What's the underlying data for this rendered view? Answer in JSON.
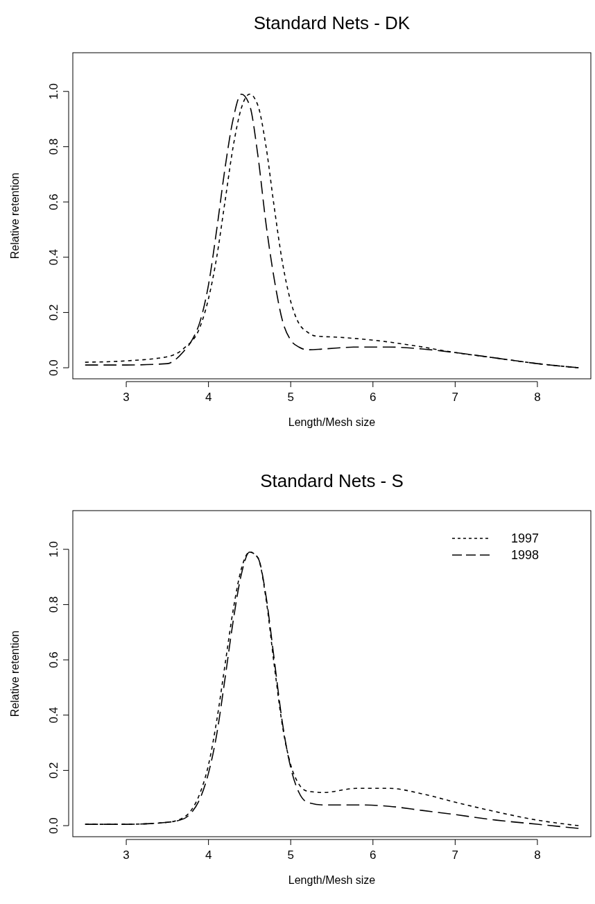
{
  "chart_data": [
    {
      "type": "line",
      "title": "Standard Nets - DK",
      "xlabel": "Length/Mesh size",
      "ylabel": "Relative retention",
      "xlim": [
        2.35,
        8.65
      ],
      "ylim": [
        -0.04,
        1.14
      ],
      "xticks": [
        3,
        4,
        5,
        6,
        7,
        8
      ],
      "yticks": [
        {
          "value": 0,
          "label": "0.0"
        },
        {
          "value": 0.2,
          "label": "0.2"
        },
        {
          "value": 0.4,
          "label": "0.4"
        },
        {
          "value": 0.6,
          "label": "0.6"
        },
        {
          "value": 0.8,
          "label": "0.8"
        },
        {
          "value": 1,
          "label": "1.0"
        }
      ],
      "grid": false,
      "legend": false,
      "series": [
        {
          "color": "#000000",
          "line_style": "dotted",
          "x": [
            2.5,
            3,
            3.5,
            3.7,
            3.9,
            4.0,
            4.1,
            4.2,
            4.3,
            4.4,
            4.5,
            4.6,
            4.7,
            4.8,
            4.9,
            5.0,
            5.1,
            5.2,
            5.3,
            5.6,
            6.0,
            6.5,
            7.0,
            7.5,
            8.0,
            8.5
          ],
          "values": [
            0.02,
            0.025,
            0.04,
            0.07,
            0.15,
            0.25,
            0.4,
            0.6,
            0.8,
            0.94,
            0.99,
            0.95,
            0.8,
            0.58,
            0.38,
            0.24,
            0.16,
            0.13,
            0.115,
            0.11,
            0.1,
            0.08,
            0.055,
            0.035,
            0.015,
            0.0
          ]
        },
        {
          "color": "#000000",
          "line_style": "dashed",
          "x": [
            2.5,
            3,
            3.5,
            3.6,
            3.7,
            3.8,
            3.9,
            4.0,
            4.1,
            4.2,
            4.3,
            4.4,
            4.5,
            4.6,
            4.7,
            4.8,
            4.9,
            5.0,
            5.1,
            5.2,
            5.4,
            5.8,
            6.2,
            6.6,
            7.0,
            7.5,
            8.0,
            8.5
          ],
          "values": [
            0.01,
            0.01,
            0.015,
            0.03,
            0.06,
            0.1,
            0.17,
            0.3,
            0.5,
            0.72,
            0.9,
            0.99,
            0.95,
            0.77,
            0.52,
            0.32,
            0.17,
            0.1,
            0.075,
            0.065,
            0.068,
            0.075,
            0.075,
            0.068,
            0.055,
            0.035,
            0.015,
            0.0
          ]
        }
      ]
    },
    {
      "type": "line",
      "title": "Standard Nets - S",
      "xlabel": "Length/Mesh size",
      "ylabel": "Relative retention",
      "xlim": [
        2.35,
        8.65
      ],
      "ylim": [
        -0.04,
        1.14
      ],
      "xticks": [
        3,
        4,
        5,
        6,
        7,
        8
      ],
      "yticks": [
        {
          "value": 0,
          "label": "0.0"
        },
        {
          "value": 0.2,
          "label": "0.2"
        },
        {
          "value": 0.4,
          "label": "0.4"
        },
        {
          "value": 0.6,
          "label": "0.6"
        },
        {
          "value": 0.8,
          "label": "0.8"
        },
        {
          "value": 1,
          "label": "1.0"
        }
      ],
      "grid": false,
      "legend": "top right",
      "series": [
        {
          "name": "1997",
          "color": "#000000",
          "line_style": "dotted",
          "x": [
            2.5,
            3,
            3.5,
            3.7,
            3.8,
            3.9,
            4.0,
            4.1,
            4.2,
            4.3,
            4.4,
            4.5,
            4.6,
            4.7,
            4.8,
            4.9,
            5.0,
            5.1,
            5.2,
            5.4,
            5.8,
            6.2,
            6.6,
            7.0,
            7.5,
            8.0,
            8.5
          ],
          "values": [
            0.005,
            0.005,
            0.012,
            0.03,
            0.06,
            0.12,
            0.22,
            0.38,
            0.58,
            0.78,
            0.93,
            0.99,
            0.97,
            0.82,
            0.58,
            0.36,
            0.22,
            0.15,
            0.125,
            0.12,
            0.135,
            0.135,
            0.115,
            0.085,
            0.05,
            0.02,
            0.0
          ]
        },
        {
          "name": "1998",
          "color": "#000000",
          "line_style": "dashed",
          "x": [
            2.5,
            3,
            3.5,
            3.7,
            3.8,
            3.9,
            4.0,
            4.1,
            4.2,
            4.3,
            4.4,
            4.5,
            4.6,
            4.7,
            4.8,
            4.9,
            5.0,
            5.1,
            5.2,
            5.4,
            5.8,
            6.2,
            6.6,
            7.0,
            7.5,
            8.0,
            8.5
          ],
          "values": [
            0.005,
            0.005,
            0.012,
            0.025,
            0.05,
            0.1,
            0.19,
            0.33,
            0.53,
            0.74,
            0.91,
            0.99,
            0.97,
            0.83,
            0.6,
            0.37,
            0.21,
            0.12,
            0.085,
            0.075,
            0.075,
            0.07,
            0.055,
            0.04,
            0.02,
            0.005,
            -0.01
          ]
        }
      ]
    }
  ]
}
